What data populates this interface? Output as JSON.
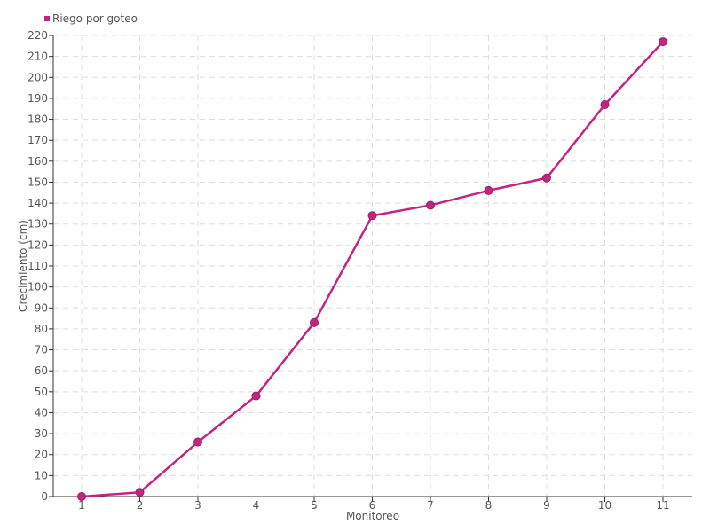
{
  "chart_data": {
    "type": "line",
    "title": "",
    "xlabel": "Monitoreo",
    "ylabel": "Crecimiento (cm)",
    "categories": [
      "1",
      "2",
      "3",
      "4",
      "5",
      "6",
      "7",
      "8",
      "9",
      "10",
      "11"
    ],
    "series": [
      {
        "name": "Riego por goteo",
        "color": "#c2257f",
        "values": [
          0,
          2,
          26,
          48,
          83,
          134,
          139,
          146,
          152,
          187,
          217
        ]
      }
    ],
    "ylim": [
      0,
      220
    ],
    "ytick_step": 10,
    "grid": true,
    "legend": "top-left"
  }
}
